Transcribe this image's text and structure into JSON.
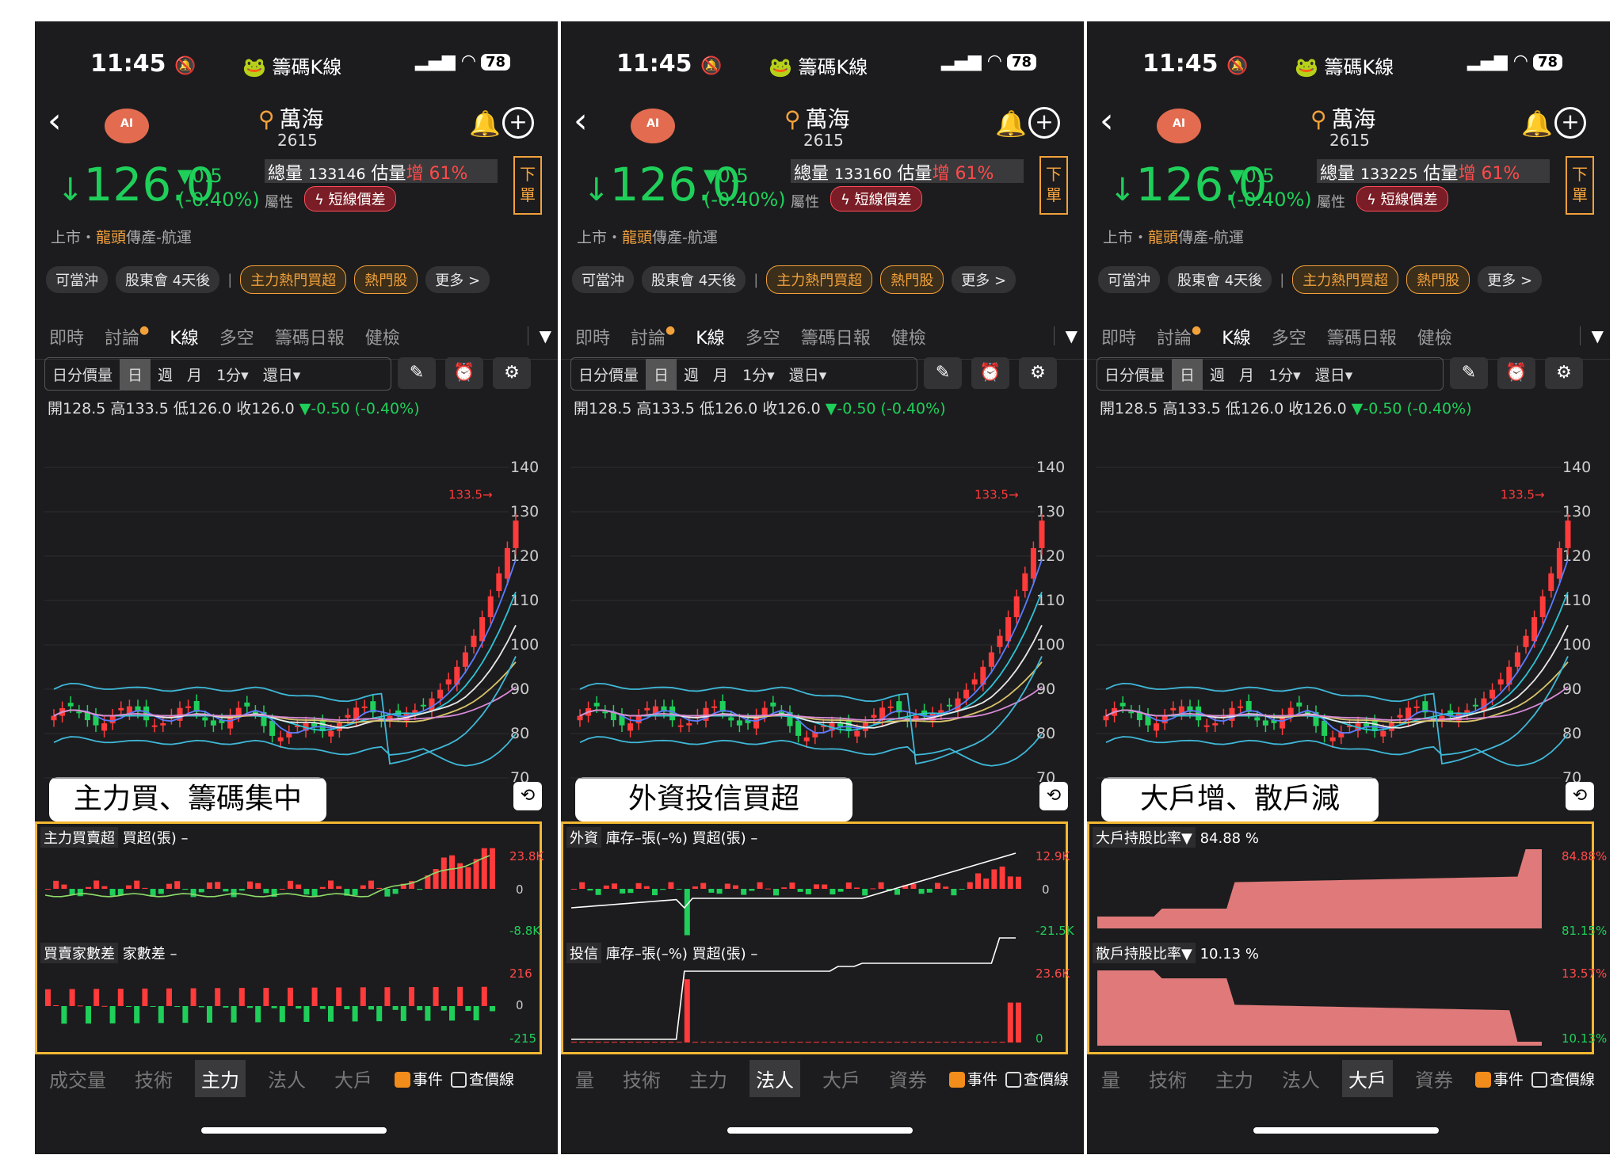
{
  "screens": [
    {
      "status": {
        "time": "11:45",
        "title": "籌碼K線",
        "battery": "78"
      },
      "stock": {
        "name": "萬海",
        "code": "2615",
        "price": "126.0",
        "change": "▼0.5",
        "change_pct": "(-0.40%)",
        "volume_label": "總量",
        "volume": "133146",
        "est_label": "估量",
        "est_inc": "增 61%",
        "attr_label": "屬性",
        "attr_badge": "短線價差",
        "order": "下單",
        "market": "上市・",
        "market_highlight": "龍頭",
        "market_rest": "傳產-航運"
      },
      "chips": [
        "可當沖",
        "股東會 4天後",
        "主力熱門買超",
        "熱門股",
        "更多 >"
      ],
      "tabs": [
        "即時",
        "討論",
        "K線",
        "多空",
        "籌碼日報",
        "健檢"
      ],
      "controls": [
        "日分價量",
        "日",
        "週",
        "月",
        "1分▾",
        "還日▾"
      ],
      "ohlc": {
        "prefix": "開128.5 高133.5 低126.0 收126.0",
        "change": "▼-0.50 (-0.40%)"
      },
      "y_ticks": [
        "140",
        "130",
        "120",
        "110",
        "100",
        "90",
        "80",
        "70"
      ],
      "high_marker": "133.5",
      "highlight_label": "主力買、籌碼集中",
      "panel": {
        "top_label": "主力買賣超",
        "top_sub": "買超(張) –",
        "top_max": "23.8K",
        "top_zero": "0",
        "top_min": "-8.8K",
        "bottom_label": "買賣家數差",
        "bottom_sub": "家數差 –",
        "bottom_max": "216",
        "bottom_zero": "0",
        "bottom_min": "-215"
      },
      "bottom_tabs": [
        "成交量",
        "技術",
        "主力",
        "法人",
        "大戶"
      ],
      "active_bottom": 2,
      "event_label": "事件",
      "price_line_label": "查價線"
    },
    {
      "status": {
        "time": "11:45",
        "title": "籌碼K線",
        "battery": "78"
      },
      "stock": {
        "name": "萬海",
        "code": "2615",
        "price": "126.0",
        "change": "▼0.5",
        "change_pct": "(-0.40%)",
        "volume_label": "總量",
        "volume": "133160",
        "est_label": "估量",
        "est_inc": "增 61%",
        "attr_label": "屬性",
        "attr_badge": "短線價差",
        "order": "下單",
        "market": "上市・",
        "market_highlight": "龍頭",
        "market_rest": "傳產-航運"
      },
      "chips": [
        "可當沖",
        "股東會 4天後",
        "主力熱門買超",
        "熱門股",
        "更多 >"
      ],
      "tabs": [
        "即時",
        "討論",
        "K線",
        "多空",
        "籌碼日報",
        "健檢"
      ],
      "controls": [
        "日分價量",
        "日",
        "週",
        "月",
        "1分▾",
        "還日▾"
      ],
      "ohlc": {
        "prefix": "開128.5 高133.5 低126.0 收126.0",
        "change": "▼-0.50 (-0.40%)"
      },
      "y_ticks": [
        "140",
        "130",
        "120",
        "110",
        "100",
        "90",
        "80",
        "70"
      ],
      "high_marker": "133.5",
      "highlight_label": "外資投信買超",
      "panel": {
        "top_label": "外資",
        "top_sub": "庫存–張(–%)  買超(張) –",
        "top_max": "12.9K",
        "top_zero": "0",
        "top_min": "-21.5K",
        "bottom_label": "投信",
        "bottom_sub": "庫存–張(–%)  買超(張) –",
        "bottom_max": "23.6K",
        "bottom_zero": "",
        "bottom_min": "0"
      },
      "bottom_tabs": [
        "量",
        "技術",
        "主力",
        "法人",
        "大戶",
        "資券"
      ],
      "active_bottom": 3,
      "event_label": "事件",
      "price_line_label": "查價線"
    },
    {
      "status": {
        "time": "11:45",
        "title": "籌碼K線",
        "battery": "78"
      },
      "stock": {
        "name": "萬海",
        "code": "2615",
        "price": "126.0",
        "change": "▼0.5",
        "change_pct": "(-0.40%)",
        "volume_label": "總量",
        "volume": "133225",
        "est_label": "估量",
        "est_inc": "增 61%",
        "attr_label": "屬性",
        "attr_badge": "短線價差",
        "order": "下單",
        "market": "上市・",
        "market_highlight": "龍頭",
        "market_rest": "傳產-航運"
      },
      "chips": [
        "可當沖",
        "股東會 4天後",
        "主力熱門買超",
        "熱門股",
        "更多 >"
      ],
      "tabs": [
        "即時",
        "討論",
        "K線",
        "多空",
        "籌碼日報",
        "健檢"
      ],
      "controls": [
        "日分價量",
        "日",
        "週",
        "月",
        "1分▾",
        "還日▾"
      ],
      "ohlc": {
        "prefix": "開128.5 高133.5 低126.0 收126.0",
        "change": "▼-0.50 (-0.40%)"
      },
      "y_ticks": [
        "140",
        "130",
        "120",
        "110",
        "100",
        "90",
        "80",
        "70"
      ],
      "high_marker": "133.5",
      "highlight_label": "大戶增、散戶減",
      "panel": {
        "top_label": "大戶持股比率▼",
        "top_sub": "84.88 %",
        "top_max": "84.88%",
        "top_zero": "",
        "top_min": "81.15%",
        "bottom_label": "散戶持股比率▼",
        "bottom_sub": "10.13 %",
        "bottom_max": "13.57%",
        "bottom_zero": "",
        "bottom_min": "10.13%"
      },
      "bottom_tabs": [
        "量",
        "技術",
        "主力",
        "法人",
        "大戶",
        "資券"
      ],
      "active_bottom": 4,
      "event_label": "事件",
      "price_line_label": "查價線"
    }
  ],
  "colors": {
    "up": "#ff3b3b",
    "down": "#1fcf5a",
    "accent": "#f2a13b",
    "panel_border": "#f2b832",
    "area": "#e07a7a"
  },
  "icons": {
    "mute": "bell-slash-icon",
    "signal": "signal-icon",
    "wifi": "wifi-icon",
    "search": "search-icon",
    "bell": "bell-icon",
    "add": "plus-circle-icon",
    "draw": "pen-icon",
    "alarm": "alarm-icon",
    "settings": "gear-icon",
    "rotate": "rotate-icon"
  }
}
